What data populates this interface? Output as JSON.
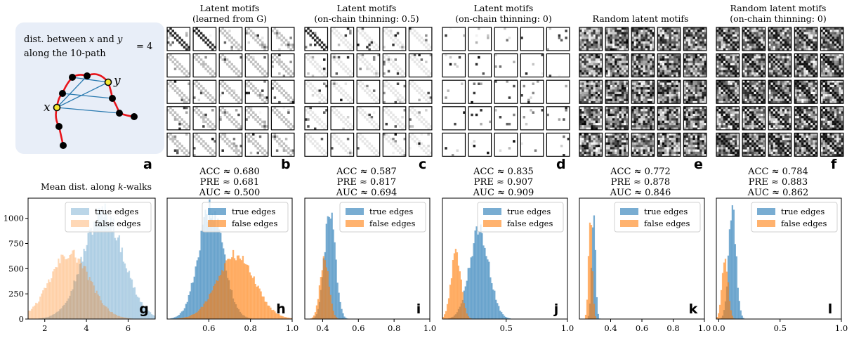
{
  "panel_a": {
    "line1": "dist. between",
    "var_x": "x",
    "and": "and",
    "var_y": "y",
    "line2": "along the 10-path",
    "value": "= 4",
    "label_x": "x",
    "label_y": "y",
    "letter": "a"
  },
  "motif_panels": [
    {
      "title1": "Latent motifs",
      "title2": "(learned from G)",
      "letter": "b",
      "acc": "ACC ≈ 0.680",
      "pre": "PRE ≈ 0.681",
      "auc": "AUC ≈ 0.500"
    },
    {
      "title1": "Latent motifs",
      "title2": "(on-chain thinning: 0.5)",
      "letter": "c",
      "acc": "ACC ≈ 0.587",
      "pre": "PRE ≈ 0.817",
      "auc": "AUC ≈ 0.694"
    },
    {
      "title1": "Latent motifs",
      "title2": "(on-chain thinning: 0)",
      "letter": "d",
      "acc": "ACC ≈ 0.835",
      "pre": "PRE ≈ 0.907",
      "auc": "AUC ≈ 0.909"
    },
    {
      "title1": "Random latent motifs",
      "title2": "",
      "letter": "e",
      "acc": "ACC ≈ 0.772",
      "pre": "PRE ≈ 0.878",
      "auc": "AUC ≈ 0.846"
    },
    {
      "title1": "Random latent motifs",
      "title2": "(on-chain thinning: 0)",
      "letter": "f",
      "acc": "ACC ≈ 0.784",
      "pre": "PRE ≈ 0.883",
      "auc": "AUC ≈ 0.862"
    }
  ],
  "hist_g_title": "Mean dist. along k-walks",
  "colors": {
    "true_edges": "#1f77b4",
    "false_edges": "#ff7f0e",
    "path_red": "#e8141b",
    "chord_blue": "#2a7ab0",
    "highlight_yellow": "#f5e830",
    "panel_a_bg": "#e8eef8"
  },
  "chart_data": [
    {
      "id": "g",
      "type": "histogram",
      "letter": "g",
      "title": "Mean dist. along k-walks",
      "series": [
        {
          "name": "true edges",
          "color": "#1f77b4",
          "alpha": 0.3,
          "mean": 4.8,
          "sd": 0.95,
          "peak": 1060
        },
        {
          "name": "false edges",
          "color": "#ff7f0e",
          "alpha": 0.3,
          "mean": 3.2,
          "sd": 0.95,
          "peak": 650
        }
      ],
      "xlim": [
        1.2,
        7.3
      ],
      "ylim": [
        0,
        1200
      ],
      "xticks": [
        2,
        4,
        6
      ],
      "xtick_labels": [
        "2",
        "4",
        "6"
      ],
      "yticks": [
        0,
        250,
        500,
        750,
        1000
      ],
      "ytick_labels": [
        "0",
        "250",
        "500",
        "750",
        "1000"
      ],
      "legend": {
        "position": "top-right",
        "entries": [
          "true edges",
          "false edges"
        ]
      }
    },
    {
      "id": "h",
      "type": "histogram",
      "letter": "h",
      "series": [
        {
          "name": "true edges",
          "color": "#1f77b4",
          "alpha": 0.6,
          "mean": 0.61,
          "sd": 0.06,
          "peak": 1.0
        },
        {
          "name": "false edges",
          "color": "#ff7f0e",
          "alpha": 0.6,
          "mean": 0.73,
          "sd": 0.09,
          "peak": 0.58
        }
      ],
      "xlim": [
        0.4,
        1.0
      ],
      "ylim": [
        0,
        1.1
      ],
      "xticks": [
        0.6,
        0.8,
        1.0
      ],
      "xtick_labels": [
        "0.6",
        "0.8",
        "1.0"
      ],
      "legend": {
        "position": "top-right",
        "entries": [
          "true edges",
          "false edges"
        ]
      }
    },
    {
      "id": "i",
      "type": "histogram",
      "letter": "i",
      "series": [
        {
          "name": "true edges",
          "color": "#1f77b4",
          "alpha": 0.6,
          "mean": 0.44,
          "sd": 0.03,
          "peak": 1.0
        },
        {
          "name": "false edges",
          "color": "#ff7f0e",
          "alpha": 0.6,
          "mean": 0.41,
          "sd": 0.025,
          "peak": 0.55
        }
      ],
      "xlim": [
        0.3,
        1.0
      ],
      "ylim": [
        0,
        1.1
      ],
      "xticks": [
        0.4,
        0.6,
        0.8,
        1.0
      ],
      "xtick_labels": [
        "0.4",
        "0.6",
        "0.8",
        "1.0"
      ],
      "legend": {
        "position": "top-right",
        "entries": [
          "true edges",
          "false edges"
        ]
      }
    },
    {
      "id": "j",
      "type": "histogram",
      "letter": "j",
      "series": [
        {
          "name": "true edges",
          "color": "#1f77b4",
          "alpha": 0.6,
          "mean": 0.28,
          "sd": 0.08,
          "peak": 0.8
        },
        {
          "name": "false edges",
          "color": "#ff7f0e",
          "alpha": 0.6,
          "mean": 0.09,
          "sd": 0.04,
          "peak": 0.6
        }
      ],
      "xlim": [
        -0.02,
        1.0
      ],
      "ylim": [
        0,
        1.1
      ],
      "xticks": [
        0.5,
        1.0
      ],
      "xtick_labels": [
        "0.5",
        "1.0"
      ],
      "legend": {
        "position": "top-right",
        "entries": [
          "true edges",
          "false edges"
        ]
      }
    },
    {
      "id": "k",
      "type": "histogram",
      "letter": "k",
      "series": [
        {
          "name": "true edges",
          "color": "#1f77b4",
          "alpha": 0.6,
          "mean": 0.29,
          "sd": 0.012,
          "peak": 1.0
        },
        {
          "name": "false edges",
          "color": "#ff7f0e",
          "alpha": 0.6,
          "mean": 0.27,
          "sd": 0.012,
          "peak": 0.9
        }
      ],
      "xlim": [
        0.2,
        1.0
      ],
      "ylim": [
        0,
        1.1
      ],
      "xticks": [
        0.4,
        0.6,
        0.8,
        1.0
      ],
      "xtick_labels": [
        "0.4",
        "0.6",
        "0.8",
        "1.0"
      ],
      "legend": {
        "position": "top-right",
        "entries": [
          "true edges",
          "false edges"
        ]
      }
    },
    {
      "id": "l",
      "type": "histogram",
      "letter": "l",
      "series": [
        {
          "name": "true edges",
          "color": "#1f77b4",
          "alpha": 0.6,
          "mean": 0.11,
          "sd": 0.03,
          "peak": 1.0
        },
        {
          "name": "false edges",
          "color": "#ff7f0e",
          "alpha": 0.6,
          "mean": 0.05,
          "sd": 0.025,
          "peak": 0.55
        }
      ],
      "xlim": [
        -0.02,
        1.0
      ],
      "ylim": [
        0,
        1.1
      ],
      "xticks": [
        0.0,
        0.5,
        1.0
      ],
      "xtick_labels": [
        "0.0",
        "0.5",
        "1.0"
      ],
      "legend": {
        "position": "top-right",
        "entries": [
          "true edges",
          "false edges"
        ]
      }
    }
  ]
}
